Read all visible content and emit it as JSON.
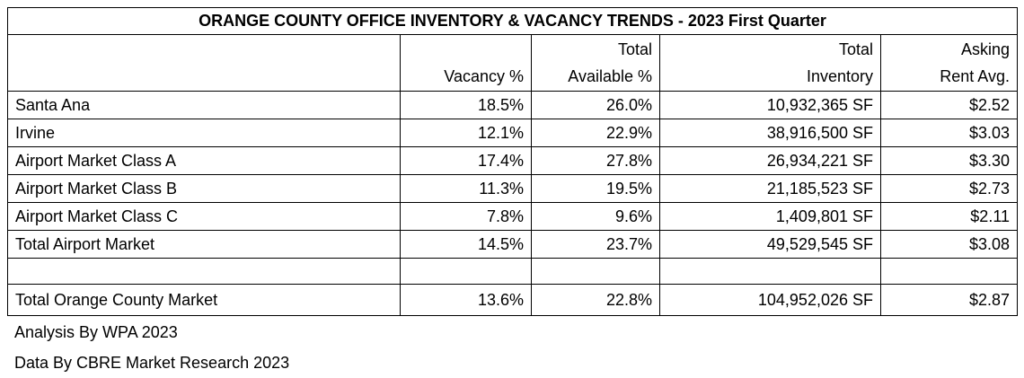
{
  "chart_data": {
    "type": "table",
    "title": "ORANGE COUNTY OFFICE INVENTORY & VACANCY TRENDS - 2023 First Quarter",
    "columns": [
      {
        "line1": "",
        "line2": ""
      },
      {
        "line1": "",
        "line2": "Vacancy %"
      },
      {
        "line1": "Total",
        "line2": "Available %"
      },
      {
        "line1": "Total",
        "line2": "Inventory"
      },
      {
        "line1": "Asking",
        "line2": "Rent Avg."
      }
    ],
    "rows": [
      {
        "market": "Santa Ana",
        "vacancy": "18.5%",
        "available": "26.0%",
        "inventory": "10,932,365 SF",
        "rent": "$2.52"
      },
      {
        "market": "Irvine",
        "vacancy": "12.1%",
        "available": "22.9%",
        "inventory": "38,916,500 SF",
        "rent": "$3.03"
      },
      {
        "market": "Airport Market Class A",
        "vacancy": "17.4%",
        "available": "27.8%",
        "inventory": "26,934,221 SF",
        "rent": "$3.30"
      },
      {
        "market": "Airport Market Class B",
        "vacancy": "11.3%",
        "available": "19.5%",
        "inventory": "21,185,523 SF",
        "rent": "$2.73"
      },
      {
        "market": "Airport Market Class C",
        "vacancy": "7.8%",
        "available": "9.6%",
        "inventory": "1,409,801 SF",
        "rent": "$2.11"
      },
      {
        "market": "Total Airport Market",
        "vacancy": "14.5%",
        "available": "23.7%",
        "inventory": "49,529,545 SF",
        "rent": "$3.08"
      }
    ],
    "total_row": {
      "market": "Total Orange County Market",
      "vacancy": "13.6%",
      "available": "22.8%",
      "inventory": "104,952,026 SF",
      "rent": "$2.87"
    }
  },
  "notes": {
    "analysis": "Analysis By WPA 2023",
    "data_source": "Data By CBRE Market Research 2023"
  }
}
